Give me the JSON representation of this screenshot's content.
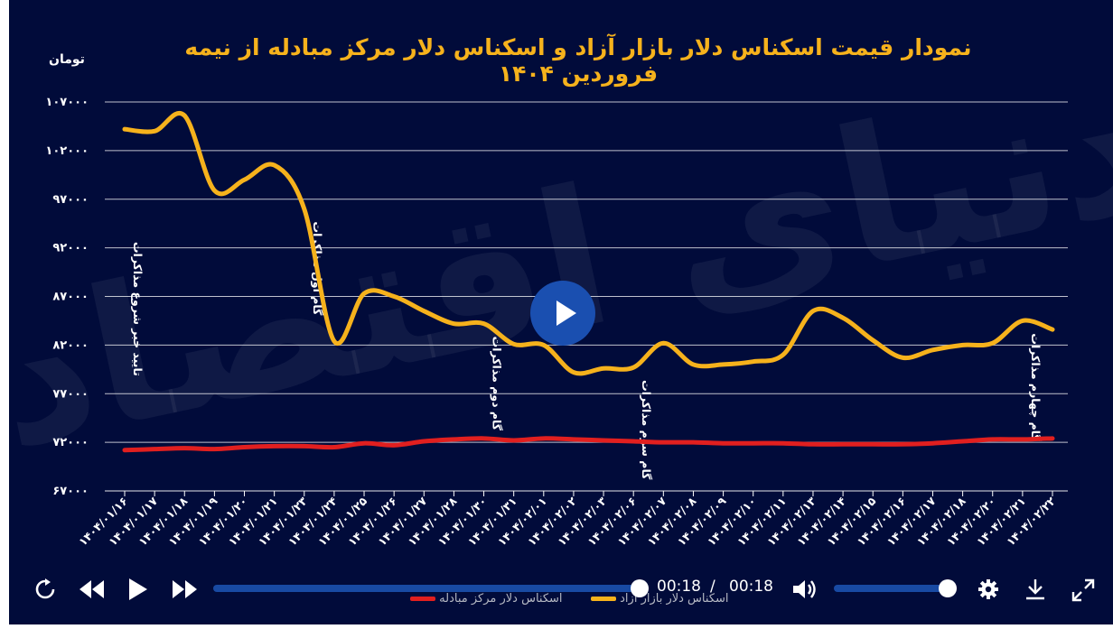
{
  "chart_data": {
    "type": "line",
    "title": "نمودار قیمت اسکناس دلار بازار آزاد و اسکناس دلار مرکز مبادله از نیمه فروردین ۱۴۰۴",
    "ylabel": "تومان",
    "xlabel": "",
    "ylim": [
      67000,
      107000
    ],
    "yticks": [
      "۱۰۷۰۰۰",
      "۱۰۲۰۰۰",
      "۹۷۰۰۰",
      "۹۲۰۰۰",
      "۸۷۰۰۰",
      "۸۲۰۰۰",
      "۷۷۰۰۰",
      "۷۲۰۰۰",
      "۶۷۰۰۰"
    ],
    "ytick_values": [
      107000,
      102000,
      97000,
      92000,
      87000,
      82000,
      77000,
      72000,
      67000
    ],
    "grid": true,
    "legend_position": "bottom",
    "categories": [
      "۱۴۰۴/۰۱/۱۶",
      "۱۴۰۴/۰۱/۱۷",
      "۱۴۰۴/۰۱/۱۸",
      "۱۴۰۴/۰۱/۱۹",
      "۱۴۰۴/۰۱/۲۰",
      "۱۴۰۴/۰۱/۲۱",
      "۱۴۰۴/۰۱/۲۳",
      "۱۴۰۴/۰۱/۲۴",
      "۱۴۰۴/۰۱/۲۵",
      "۱۴۰۴/۰۱/۲۶",
      "۱۴۰۴/۰۱/۲۷",
      "۱۴۰۴/۰۱/۲۸",
      "۱۴۰۴/۰۱/۳۰",
      "۱۴۰۴/۰۱/۳۱",
      "۱۴۰۴/۰۲/۰۱",
      "۱۴۰۴/۰۲/۰۲",
      "۱۴۰۴/۰۲/۰۳",
      "۱۴۰۴/۰۲/۰۶",
      "۱۴۰۴/۰۲/۰۷",
      "۱۴۰۴/۰۲/۰۸",
      "۱۴۰۴/۰۲/۰۹",
      "۱۴۰۴/۰۲/۱۰",
      "۱۴۰۴/۰۲/۱۱",
      "۱۴۰۴/۰۲/۱۳",
      "۱۴۰۴/۰۲/۱۴",
      "۱۴۰۴/۰۲/۱۵",
      "۱۴۰۴/۰۲/۱۶",
      "۱۴۰۴/۰۲/۱۷",
      "۱۴۰۴/۰۲/۱۸",
      "۱۴۰۴/۰۲/۲۰",
      "۱۴۰۴/۰۲/۲۱",
      "۱۴۰۴/۰۲/۲۲"
    ],
    "series": [
      {
        "name": "اسکناس دلار بازار آزاد",
        "color": "#f6b21c",
        "values": [
          104200,
          104000,
          105600,
          97900,
          99000,
          100500,
          96000,
          82400,
          87300,
          87000,
          85500,
          84200,
          84200,
          82100,
          82000,
          79200,
          79600,
          79700,
          82200,
          80000,
          80000,
          80300,
          81000,
          85500,
          84800,
          82500,
          80700,
          81500,
          82000,
          82200,
          84500,
          83600
        ]
      },
      {
        "name": "اسکناس دلار مرکز مبادله",
        "color": "#e11f1f",
        "values": [
          71200,
          71300,
          71400,
          71300,
          71500,
          71600,
          71600,
          71500,
          71900,
          71700,
          72100,
          72300,
          72400,
          72200,
          72400,
          72300,
          72200,
          72100,
          72000,
          72000,
          71900,
          71900,
          71900,
          71800,
          71800,
          71800,
          71800,
          71900,
          72100,
          72300,
          72300,
          72400
        ]
      }
    ],
    "annotations": [
      {
        "text": "تایید خبر شروع مذاکرات",
        "category_index": 0
      },
      {
        "text": "گام اول مذاکرات",
        "category_index": 6
      },
      {
        "text": "گام دوم مذاکرات",
        "category_index": 12
      },
      {
        "text": "گام سوم مذاکرات",
        "category_index": 17
      },
      {
        "text": "گام چهارم مذاکرات",
        "category_index": 30
      }
    ]
  },
  "player": {
    "current_time": "00:18",
    "separator": "/",
    "duration": "00:18",
    "progress": 1.0,
    "volume": 1.0,
    "icons": {
      "replay": "replay-icon",
      "rewind": "rewind-icon",
      "play": "play-icon",
      "forward": "fast-forward-icon",
      "volume": "volume-icon",
      "settings": "gear-icon",
      "download": "download-icon",
      "fullscreen": "fullscreen-icon"
    }
  },
  "colors": {
    "background": "#010b3a",
    "accent": "#1a4fb0",
    "free_market": "#f6b21c",
    "exchange_center": "#e11f1f"
  }
}
